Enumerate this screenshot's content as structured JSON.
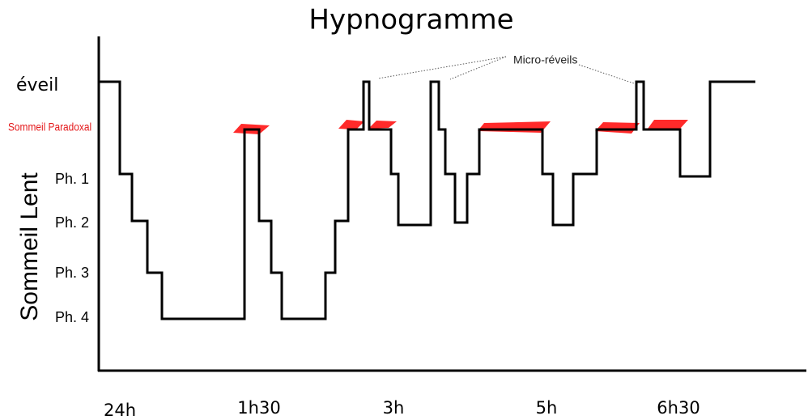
{
  "title": "Hypnogramme",
  "y_labels": {
    "wake": "éveil",
    "paradoxal": "Sommeil Paradoxal",
    "ph1": "Ph. 1",
    "ph2": "Ph. 2",
    "ph3": "Ph. 3",
    "ph4": "Ph. 4"
  },
  "y_axis_title": "Sommeil Lent",
  "x_labels": [
    "24h",
    "1h30",
    "3h",
    "5h",
    "6h30"
  ],
  "annotation": "Micro-réveils"
}
